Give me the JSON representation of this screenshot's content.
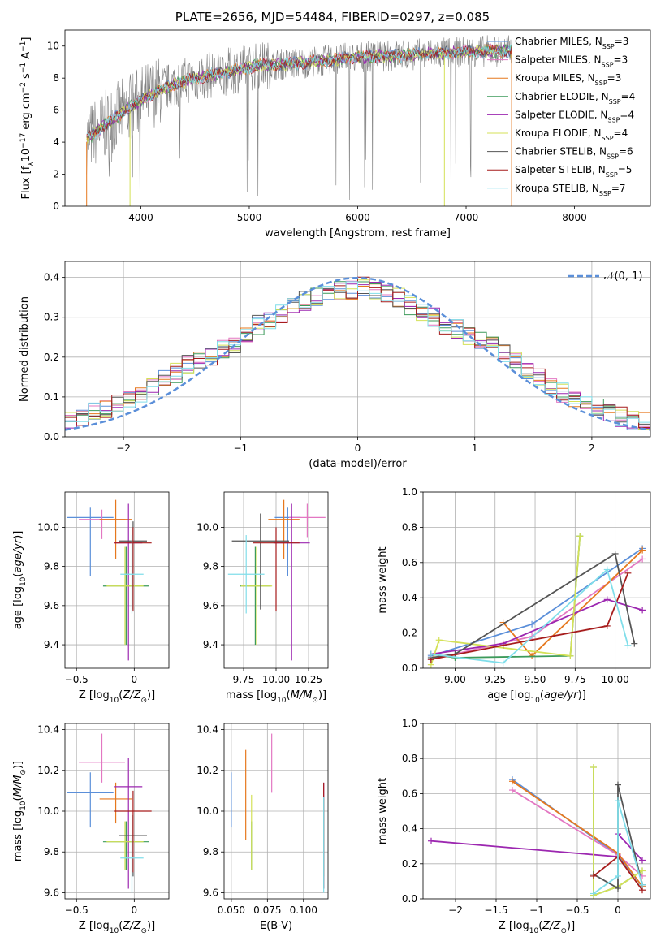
{
  "figure": {
    "title": "PLATE=2656, MJD=54484, FIBERID=0297, z=0.085"
  },
  "colors": {
    "Chabrier MILES": "#5b8fd9",
    "Salpeter MILES": "#e377c2",
    "Kroupa MILES": "#e6781e",
    "Chabrier ELODIE": "#3c9a5a",
    "Salpeter ELODIE": "#9c27b0",
    "Kroupa ELODIE": "#d4e157",
    "Chabrier STELIB": "#555555",
    "Salpeter STELIB": "#a61c1c",
    "Kroupa STELIB": "#80deea",
    "data": "#808080",
    "normal": "#5b8fd9"
  },
  "chart_data": [
    {
      "id": "spectrum",
      "type": "line",
      "xlabel": "wavelength [Angstrom, rest frame]",
      "ylabel": "Flux [f_λ10^-17 erg cm^-2 s^-1 A^-1]",
      "xlim": [
        3300,
        8700
      ],
      "ylim": [
        0,
        11
      ],
      "xticks": [
        4000,
        5000,
        6000,
        7000,
        8000
      ],
      "yticks": [
        0,
        2,
        4,
        6,
        8,
        10
      ],
      "grid": false,
      "legend_position": "right",
      "legend": [
        {
          "base": "Chabrier MILES, N",
          "sub": "SSP",
          "tail": "=3"
        },
        {
          "base": "Salpeter MILES, N",
          "sub": "SSP",
          "tail": "=3"
        },
        {
          "base": "Kroupa MILES, N",
          "sub": "SSP",
          "tail": "=3"
        },
        {
          "base": "Chabrier ELODIE, N",
          "sub": "SSP",
          "tail": "=4"
        },
        {
          "base": "Salpeter ELODIE, N",
          "sub": "SSP",
          "tail": "=4"
        },
        {
          "base": "Kroupa ELODIE, N",
          "sub": "SSP",
          "tail": "=4"
        },
        {
          "base": "Chabrier STELIB, N",
          "sub": "SSP",
          "tail": "=6"
        },
        {
          "base": "Salpeter STELIB, N",
          "sub": "SSP",
          "tail": "=5"
        },
        {
          "base": "Kroupa STELIB, N",
          "sub": "SSP",
          "tail": "=7"
        }
      ],
      "continuum": {
        "x": [
          3500,
          3700,
          3900,
          4100,
          4300,
          4500,
          4800,
          5100,
          5400,
          5700,
          6000,
          6300,
          6600,
          6900,
          7200,
          7400
        ],
        "y": [
          4.2,
          5.2,
          6.2,
          7.0,
          7.6,
          8.0,
          8.4,
          8.8,
          8.9,
          9.1,
          9.3,
          9.4,
          9.5,
          9.6,
          9.7,
          9.7
        ]
      },
      "data_range": [
        3500,
        7420
      ]
    },
    {
      "id": "residuals",
      "type": "histogram",
      "xlabel": "(data-model)/error",
      "ylabel": "Normed distribution",
      "xlim": [
        -2.5,
        2.5
      ],
      "ylim": [
        0,
        0.44
      ],
      "xticks": [
        -2,
        -1,
        0,
        1,
        2
      ],
      "yticks": [
        0.0,
        0.1,
        0.2,
        0.3,
        0.4
      ],
      "grid": true,
      "bin_width": 0.1,
      "bin_start": -2.5,
      "legend_position": "top-right",
      "normal_label": "𝒩(0, 1)",
      "base_counts": [
        0.04,
        0.05,
        0.06,
        0.07,
        0.08,
        0.09,
        0.11,
        0.13,
        0.15,
        0.16,
        0.18,
        0.19,
        0.2,
        0.22,
        0.23,
        0.26,
        0.28,
        0.29,
        0.31,
        0.33,
        0.34,
        0.35,
        0.36,
        0.37,
        0.37,
        0.38,
        0.37,
        0.36,
        0.35,
        0.33,
        0.31,
        0.3,
        0.28,
        0.27,
        0.25,
        0.24,
        0.23,
        0.21,
        0.19,
        0.17,
        0.15,
        0.13,
        0.11,
        0.09,
        0.08,
        0.07,
        0.06,
        0.05,
        0.04,
        0.04
      ]
    },
    {
      "id": "age-vs-Z",
      "type": "scatter",
      "xlabel": "Z [log10(Z/Z⊙)]",
      "ylabel": "age [log10(age/yr)]",
      "xlim": [
        -0.6,
        0.3
      ],
      "ylim": [
        9.28,
        10.18
      ],
      "xticks": [
        -0.5,
        0.0
      ],
      "yticks": [
        9.4,
        9.6,
        9.8,
        10.0
      ],
      "grid": true,
      "points": [
        {
          "model": "Chabrier MILES",
          "x": -0.38,
          "xerr": 0.2,
          "y": 10.05,
          "yerr": 0.05,
          "yerr_lo": 0.3
        },
        {
          "model": "Salpeter MILES",
          "x": -0.28,
          "xerr": 0.2,
          "y": 10.04,
          "yerr": 0.05,
          "yerr_lo": 0.1
        },
        {
          "model": "Kroupa MILES",
          "x": -0.16,
          "xerr": 0.14,
          "y": 10.04,
          "yerr": 0.1,
          "yerr_lo": 0.2
        },
        {
          "model": "Chabrier ELODIE",
          "x": -0.07,
          "xerr": 0.2,
          "y": 9.7,
          "yerr": 0.2,
          "yerr_lo": 0.3
        },
        {
          "model": "Salpeter ELODIE",
          "x": -0.05,
          "xerr": 0.12,
          "y": 9.92,
          "yerr": 0.2,
          "yerr_lo": 0.6
        },
        {
          "model": "Kroupa ELODIE",
          "x": -0.08,
          "xerr": 0.16,
          "y": 9.7,
          "yerr": 0.2,
          "yerr_lo": 0.3
        },
        {
          "model": "Chabrier STELIB",
          "x": -0.01,
          "xerr": 0.12,
          "y": 9.93,
          "yerr": 0.1,
          "yerr_lo": 0.35
        },
        {
          "model": "Salpeter STELIB",
          "x": -0.01,
          "xerr": 0.16,
          "y": 9.92,
          "yerr": 0.08,
          "yerr_lo": 0.35
        },
        {
          "model": "Kroupa STELIB",
          "x": -0.02,
          "xerr": 0.1,
          "y": 9.76,
          "yerr": 0.2,
          "yerr_lo": 0.2
        }
      ]
    },
    {
      "id": "age-vs-mass",
      "type": "scatter",
      "xlabel": "mass [log10(M/M⊙)]",
      "ylabel": "",
      "xlim": [
        9.6,
        10.4
      ],
      "ylim": [
        9.28,
        10.18
      ],
      "xticks": [
        9.75,
        10.0,
        10.25
      ],
      "yticks": [
        9.4,
        9.6,
        9.8,
        10.0
      ],
      "xtick_labels": [
        "9.75",
        "10.00",
        "10.25"
      ],
      "grid": true,
      "points": [
        {
          "model": "Chabrier MILES",
          "x": 10.09,
          "xerr": 0.1,
          "y": 10.05,
          "yerr": 0.05,
          "yerr_lo": 0.3
        },
        {
          "model": "Salpeter MILES",
          "x": 10.24,
          "xerr": 0.14,
          "y": 10.05,
          "yerr": 0.07,
          "yerr_lo": 0.1
        },
        {
          "model": "Kroupa MILES",
          "x": 10.06,
          "xerr": 0.12,
          "y": 10.04,
          "yerr": 0.1,
          "yerr_lo": 0.2
        },
        {
          "model": "Chabrier ELODIE",
          "x": 9.84,
          "xerr": 0.12,
          "y": 9.7,
          "yerr": 0.2,
          "yerr_lo": 0.3
        },
        {
          "model": "Salpeter ELODIE",
          "x": 10.12,
          "xerr": 0.14,
          "y": 9.92,
          "yerr": 0.2,
          "yerr_lo": 0.6
        },
        {
          "model": "Kroupa ELODIE",
          "x": 9.85,
          "xerr": 0.12,
          "y": 9.7,
          "yerr": 0.2,
          "yerr_lo": 0.3
        },
        {
          "model": "Chabrier STELIB",
          "x": 9.88,
          "xerr": 0.22,
          "y": 9.93,
          "yerr": 0.14,
          "yerr_lo": 0.35
        },
        {
          "model": "Salpeter STELIB",
          "x": 10.0,
          "xerr": 0.18,
          "y": 9.92,
          "yerr": 0.08,
          "yerr_lo": 0.35
        },
        {
          "model": "Kroupa STELIB",
          "x": 9.77,
          "xerr": 0.14,
          "y": 9.76,
          "yerr": 0.2,
          "yerr_lo": 0.2
        }
      ]
    },
    {
      "id": "mass-weight-vs-age",
      "type": "line",
      "xlabel": "age [log10(age/yr)]",
      "ylabel": "mass weight",
      "xlim": [
        8.8,
        10.22
      ],
      "ylim": [
        0,
        1
      ],
      "xticks": [
        9.0,
        9.25,
        9.5,
        9.75,
        10.0
      ],
      "xtick_labels": [
        "9.00",
        "9.25",
        "9.50",
        "9.75",
        "10.00"
      ],
      "yticks": [
        0.0,
        0.2,
        0.4,
        0.6,
        0.8,
        1.0
      ],
      "grid": true,
      "series": [
        {
          "model": "Chabrier MILES",
          "x": [
            8.85,
            9.48,
            10.17
          ],
          "y": [
            0.07,
            0.25,
            0.68
          ]
        },
        {
          "model": "Salpeter MILES",
          "x": [
            8.85,
            9.48,
            10.17
          ],
          "y": [
            0.05,
            0.18,
            0.62
          ]
        },
        {
          "model": "Kroupa MILES",
          "x": [
            9.3,
            9.48,
            10.17
          ],
          "y": [
            0.26,
            0.07,
            0.67
          ]
        },
        {
          "model": "Chabrier ELODIE",
          "x": [
            8.85,
            9.0,
            9.72,
            9.78
          ],
          "y": [
            0.08,
            0.06,
            0.07,
            0.75
          ]
        },
        {
          "model": "Salpeter ELODIE",
          "x": [
            8.85,
            9.3,
            9.95,
            10.17
          ],
          "y": [
            0.08,
            0.14,
            0.39,
            0.33
          ]
        },
        {
          "model": "Kroupa ELODIE",
          "x": [
            8.85,
            8.9,
            9.72,
            9.78
          ],
          "y": [
            0.02,
            0.16,
            0.07,
            0.75
          ]
        },
        {
          "model": "Chabrier STELIB",
          "x": [
            8.85,
            9.0,
            10.0,
            10.12
          ],
          "y": [
            0.06,
            0.08,
            0.65,
            0.14
          ]
        },
        {
          "model": "Salpeter STELIB",
          "x": [
            8.85,
            9.3,
            9.95,
            10.08
          ],
          "y": [
            0.05,
            0.13,
            0.24,
            0.54
          ]
        },
        {
          "model": "Kroupa STELIB",
          "x": [
            8.85,
            9.3,
            9.95,
            10.08
          ],
          "y": [
            0.08,
            0.03,
            0.56,
            0.13
          ]
        }
      ]
    },
    {
      "id": "mass-vs-Z",
      "type": "scatter",
      "xlabel": "Z [log10(Z/Z⊙)]",
      "ylabel": "mass [log10(M/M⊙)]",
      "xlim": [
        -0.6,
        0.3
      ],
      "ylim": [
        9.57,
        10.43
      ],
      "xticks": [
        -0.5,
        0.0
      ],
      "yticks": [
        9.6,
        9.8,
        10.0,
        10.2,
        10.4
      ],
      "grid": true,
      "points": [
        {
          "model": "Chabrier MILES",
          "x": -0.38,
          "xerr": 0.2,
          "y": 10.09,
          "yerr": 0.1,
          "yerr_lo": 0.17
        },
        {
          "model": "Salpeter MILES",
          "x": -0.28,
          "xerr": 0.2,
          "y": 10.24,
          "yerr": 0.14,
          "yerr_lo": 0.1
        },
        {
          "model": "Kroupa MILES",
          "x": -0.16,
          "xerr": 0.14,
          "y": 10.06,
          "yerr": 0.08,
          "yerr_lo": 0.12
        },
        {
          "model": "Chabrier ELODIE",
          "x": -0.07,
          "xerr": 0.2,
          "y": 9.85,
          "yerr": 0.1,
          "yerr_lo": 0.14
        },
        {
          "model": "Salpeter ELODIE",
          "x": -0.05,
          "xerr": 0.12,
          "y": 10.12,
          "yerr": 0.14,
          "yerr_lo": 0.5
        },
        {
          "model": "Kroupa ELODIE",
          "x": -0.08,
          "xerr": 0.16,
          "y": 9.85,
          "yerr": 0.1,
          "yerr_lo": 0.14
        },
        {
          "model": "Chabrier STELIB",
          "x": -0.01,
          "xerr": 0.12,
          "y": 9.88,
          "yerr": 0.1,
          "yerr_lo": 0.2
        },
        {
          "model": "Salpeter STELIB",
          "x": -0.01,
          "xerr": 0.16,
          "y": 10.0,
          "yerr": 0.1,
          "yerr_lo": 0.3
        },
        {
          "model": "Kroupa STELIB",
          "x": -0.02,
          "xerr": 0.1,
          "y": 9.77,
          "yerr": 0.1,
          "yerr_lo": 0.17
        }
      ]
    },
    {
      "id": "mass-vs-ebv",
      "type": "scatter",
      "xlabel": "E(B-V)",
      "ylabel": "",
      "xlim": [
        0.045,
        0.117
      ],
      "ylim": [
        9.57,
        10.43
      ],
      "xticks": [
        0.05,
        0.075,
        0.1
      ],
      "xtick_labels": [
        "0.050",
        "0.075",
        "0.100"
      ],
      "yticks": [
        9.6,
        9.8,
        10.0,
        10.2,
        10.4
      ],
      "grid": true,
      "points": [
        {
          "model": "Chabrier MILES",
          "x": 0.05,
          "y": 10.09,
          "yerr": 0.1,
          "yerr_lo": 0.17
        },
        {
          "model": "Salpeter MILES",
          "x": 0.078,
          "y": 10.24,
          "yerr": 0.14,
          "yerr_lo": 0.15
        },
        {
          "model": "Kroupa MILES",
          "x": 0.06,
          "y": 10.06,
          "yerr": 0.24,
          "yerr_lo": 0.2
        },
        {
          "model": "Chabrier ELODIE",
          "x": 0.064,
          "y": 9.85,
          "yerr": 0.1,
          "yerr_lo": 0.14
        },
        {
          "model": "Salpeter ELODIE",
          "x": 0.114,
          "y": 10.12,
          "yerr": 0.02,
          "yerr_lo": 0.5
        },
        {
          "model": "Kroupa ELODIE",
          "x": 0.064,
          "y": 9.85,
          "yerr": 0.23,
          "yerr_lo": 0.14
        },
        {
          "model": "Chabrier STELIB",
          "x": 0.114,
          "y": 9.88,
          "yerr": 0.18,
          "yerr_lo": 0.2
        },
        {
          "model": "Salpeter STELIB",
          "x": 0.114,
          "y": 10.0,
          "yerr": 0.14,
          "yerr_lo": 0.38
        },
        {
          "model": "Kroupa STELIB",
          "x": 0.114,
          "y": 9.77,
          "yerr": 0.3,
          "yerr_lo": 0.17
        }
      ]
    },
    {
      "id": "mass-weight-vs-Z",
      "type": "line",
      "xlabel": "Z [log10(Z/Z⊙)]",
      "ylabel": "mass weight",
      "xlim": [
        -2.4,
        0.4
      ],
      "ylim": [
        0,
        1
      ],
      "xticks": [
        -2.0,
        -1.5,
        -1.0,
        -0.5,
        0.0
      ],
      "yticks": [
        0.0,
        0.2,
        0.4,
        0.6,
        0.8,
        1.0
      ],
      "grid": true,
      "series": [
        {
          "model": "Chabrier MILES",
          "x": [
            -1.3,
            0.0,
            0.3
          ],
          "y": [
            0.68,
            0.25,
            0.07
          ]
        },
        {
          "model": "Salpeter MILES",
          "x": [
            -1.3,
            0.0,
            0.3
          ],
          "y": [
            0.62,
            0.25,
            0.13
          ]
        },
        {
          "model": "Kroupa MILES",
          "x": [
            -1.3,
            0.0,
            0.3
          ],
          "y": [
            0.67,
            0.26,
            0.07
          ]
        },
        {
          "model": "Chabrier ELODIE",
          "x": [
            -0.3,
            -0.3,
            0.0,
            0.3
          ],
          "y": [
            0.75,
            0.02,
            0.07,
            0.16
          ]
        },
        {
          "model": "Salpeter ELODIE",
          "x": [
            -2.3,
            0.0,
            0.0,
            0.3
          ],
          "y": [
            0.33,
            0.24,
            0.37,
            0.22
          ]
        },
        {
          "model": "Kroupa ELODIE",
          "x": [
            -0.3,
            -0.3,
            0.0,
            0.3
          ],
          "y": [
            0.75,
            0.02,
            0.07,
            0.16
          ]
        },
        {
          "model": "Chabrier STELIB",
          "x": [
            -0.3,
            0.0,
            0.0,
            0.3
          ],
          "y": [
            0.14,
            0.06,
            0.65,
            0.08
          ]
        },
        {
          "model": "Salpeter STELIB",
          "x": [
            -0.3,
            0.0,
            0.3
          ],
          "y": [
            0.13,
            0.24,
            0.05
          ]
        },
        {
          "model": "Kroupa STELIB",
          "x": [
            -0.3,
            0.0,
            0.0,
            0.3
          ],
          "y": [
            0.03,
            0.13,
            0.56,
            0.08
          ]
        }
      ]
    }
  ]
}
